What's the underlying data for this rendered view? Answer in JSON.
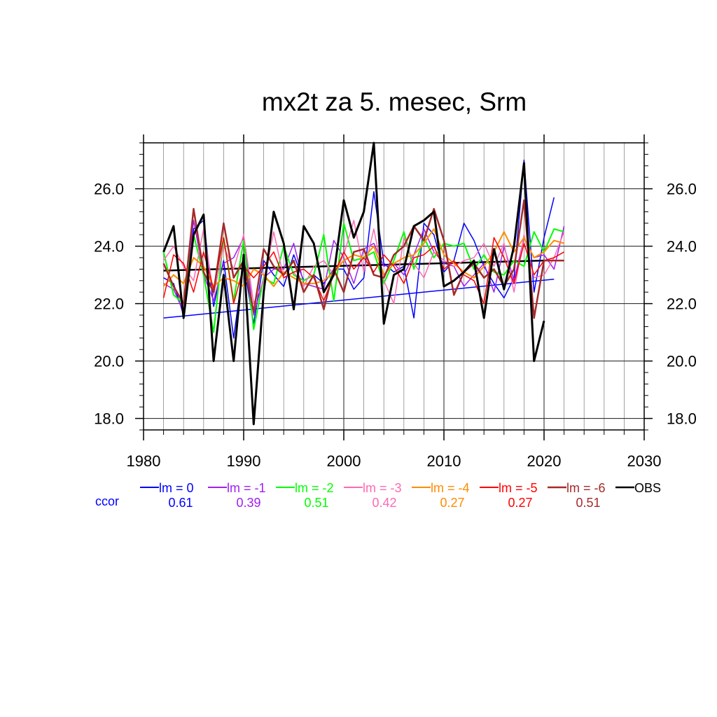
{
  "chart_data": {
    "type": "line",
    "title": "mx2t za 5. mesec, Srm",
    "xlim": [
      1980,
      2030
    ],
    "ylim": [
      17.6,
      27.6
    ],
    "x_ticks": [
      1980,
      1990,
      2000,
      2010,
      2020,
      2030
    ],
    "x_tick_labels": [
      "1980",
      "1990",
      "2000",
      "2010",
      "2020",
      "2030"
    ],
    "y_ticks": [
      18,
      20,
      22,
      24,
      26
    ],
    "y_tick_labels": [
      "18.0",
      "20.0",
      "22.0",
      "24.0",
      "26.0"
    ],
    "grid": true,
    "ccor_label": "ccor",
    "series": [
      {
        "name": "lm = 0",
        "color": "#0000ff",
        "width": 1.5,
        "ccor": "0.61",
        "x": [
          1982,
          1983,
          1984,
          1985,
          1986,
          1987,
          1988,
          1989,
          1990,
          1991,
          1992,
          1993,
          1994,
          1995,
          1996,
          1997,
          1998,
          1999,
          2000,
          2001,
          2002,
          2003,
          2004,
          2005,
          2006,
          2007,
          2008,
          2009,
          2010,
          2011,
          2012,
          2013,
          2014,
          2015,
          2016,
          2017,
          2018,
          2019,
          2020,
          2021
        ],
        "y": [
          22.9,
          22.7,
          21.6,
          24.6,
          24.9,
          21.9,
          23.5,
          20.8,
          23.4,
          21.3,
          23.5,
          23.0,
          22.6,
          23.7,
          22.8,
          23.0,
          22.7,
          23.2,
          23.2,
          22.5,
          22.9,
          25.9,
          23.4,
          23.1,
          23.3,
          21.5,
          24.8,
          24.4,
          23.1,
          23.5,
          24.8,
          24.2,
          23.3,
          22.7,
          22.2,
          22.9,
          27.0,
          22.4,
          24.3,
          25.7
        ],
        "trend": [
          21.5,
          22.85
        ]
      },
      {
        "name": "lm = -1",
        "color": "#a020f0",
        "width": 1.5,
        "ccor": "0.39",
        "x": [
          1982,
          1983,
          1984,
          1985,
          1986,
          1987,
          1988,
          1989,
          1990,
          1991,
          1992,
          1993,
          1994,
          1995,
          1996,
          1997,
          1998,
          1999,
          2000,
          2001,
          2002,
          2003,
          2004,
          2005,
          2006,
          2007,
          2008,
          2009,
          2010,
          2011,
          2012,
          2013,
          2014,
          2015,
          2016,
          2017,
          2018,
          2019,
          2020,
          2021,
          2022
        ],
        "y": [
          22.7,
          22.5,
          21.7,
          24.9,
          23.0,
          22.1,
          23.4,
          23.6,
          24.3,
          21.6,
          22.9,
          23.2,
          23.2,
          24.1,
          22.7,
          22.6,
          22.5,
          24.2,
          23.6,
          22.7,
          23.9,
          24.1,
          23.3,
          23.4,
          23.0,
          23.7,
          24.6,
          23.8,
          23.4,
          23.3,
          22.6,
          23.0,
          23.4,
          22.4,
          24.0,
          22.8,
          24.3,
          23.6,
          23.7,
          23.2,
          24.7
        ]
      },
      {
        "name": "lm = -2",
        "color": "#00ff00",
        "width": 2,
        "ccor": "0.51",
        "x": [
          1982,
          1983,
          1984,
          1985,
          1986,
          1987,
          1988,
          1989,
          1990,
          1991,
          1992,
          1993,
          1994,
          1995,
          1996,
          1997,
          1998,
          1999,
          2000,
          2001,
          2002,
          2003,
          2004,
          2005,
          2006,
          2007,
          2008,
          2009,
          2010,
          2011,
          2012,
          2013,
          2014,
          2015,
          2016,
          2017,
          2018,
          2019,
          2020,
          2021,
          2022
        ],
        "y": [
          23.8,
          22.3,
          22.0,
          24.4,
          23.0,
          21.0,
          24.3,
          22.1,
          24.2,
          21.1,
          22.9,
          22.7,
          24.0,
          23.0,
          22.8,
          23.0,
          24.4,
          22.1,
          24.8,
          23.5,
          23.6,
          23.8,
          22.7,
          23.5,
          24.5,
          23.2,
          24.3,
          23.6,
          24.1,
          24.0,
          24.1,
          23.2,
          23.7,
          23.1,
          23.0,
          23.5,
          23.3,
          24.5,
          23.8,
          24.6,
          24.5
        ]
      },
      {
        "name": "lm = -3",
        "color": "#ff69b4",
        "width": 1.5,
        "ccor": "0.42",
        "x": [
          1982,
          1983,
          1984,
          1985,
          1986,
          1987,
          1988,
          1989,
          1990,
          1991,
          1992,
          1993,
          1994,
          1995,
          1996,
          1997,
          1998,
          1999,
          2000,
          2001,
          2002,
          2003,
          2004,
          2005,
          2006,
          2007,
          2008,
          2009,
          2010,
          2011,
          2012,
          2013,
          2014,
          2015,
          2016,
          2017,
          2018,
          2019,
          2020,
          2021,
          2022
        ],
        "y": [
          23.5,
          24.0,
          23.3,
          22.8,
          24.6,
          22.3,
          24.0,
          23.2,
          24.4,
          22.0,
          22.8,
          24.5,
          22.9,
          23.1,
          22.6,
          23.3,
          23.5,
          23.0,
          23.7,
          24.9,
          23.1,
          24.6,
          22.8,
          22.0,
          24.3,
          23.4,
          22.9,
          23.8,
          23.5,
          23.3,
          23.5,
          23.6,
          24.1,
          23.3,
          24.1,
          22.4,
          24.4,
          22.9,
          23.0,
          23.6,
          24.5
        ]
      },
      {
        "name": "lm = -4",
        "color": "#ff8c00",
        "width": 2,
        "ccor": "0.27",
        "x": [
          1982,
          1983,
          1984,
          1985,
          1986,
          1987,
          1988,
          1989,
          1990,
          1991,
          1992,
          1993,
          1994,
          1995,
          1996,
          1997,
          1998,
          1999,
          2000,
          2001,
          2002,
          2003,
          2004,
          2005,
          2006,
          2007,
          2008,
          2009,
          2010,
          2011,
          2012,
          2013,
          2014,
          2015,
          2016,
          2017,
          2018,
          2019,
          2020,
          2021,
          2022
        ],
        "y": [
          22.6,
          23.0,
          22.7,
          23.6,
          23.3,
          22.6,
          22.9,
          22.8,
          22.6,
          23.2,
          23.0,
          22.6,
          23.1,
          22.9,
          22.7,
          22.7,
          22.8,
          23.1,
          23.5,
          23.7,
          23.6,
          24.0,
          23.0,
          23.4,
          23.6,
          23.7,
          24.1,
          24.6,
          23.7,
          23.4,
          23.1,
          22.9,
          23.3,
          23.8,
          24.5,
          23.8,
          24.3,
          23.6,
          23.8,
          24.2,
          24.1
        ]
      },
      {
        "name": "lm = -5",
        "color": "#ff0000",
        "width": 1.5,
        "ccor": "0.27",
        "x": [
          1982,
          1983,
          1984,
          1985,
          1986,
          1987,
          1988,
          1989,
          1990,
          1991,
          1992,
          1993,
          1994,
          1995,
          1996,
          1997,
          1998,
          1999,
          2000,
          2001,
          2002,
          2003,
          2004,
          2005,
          2006,
          2007,
          2008,
          2009,
          2010,
          2011,
          2012,
          2013,
          2014,
          2015,
          2016,
          2017,
          2018,
          2019,
          2020,
          2021,
          2022
        ],
        "y": [
          22.2,
          23.7,
          23.4,
          22.4,
          23.8,
          22.5,
          24.3,
          22.0,
          23.3,
          22.9,
          23.3,
          23.8,
          22.9,
          23.1,
          23.2,
          22.9,
          22.1,
          23.0,
          23.8,
          23.2,
          23.6,
          23.1,
          23.7,
          23.3,
          22.7,
          23.6,
          23.7,
          24.0,
          23.2,
          23.5,
          23.0,
          22.8,
          22.0,
          24.3,
          23.6,
          22.7,
          24.1,
          23.0,
          23.5,
          23.6,
          23.8
        ]
      },
      {
        "name": "lm = -6",
        "color": "#a52a2a",
        "width": 2.5,
        "ccor": "0.51",
        "x": [
          1982,
          1983,
          1984,
          1985,
          1986,
          1987,
          1988,
          1989,
          1990,
          1991,
          1992,
          1993,
          1994,
          1995,
          1996,
          1997,
          1998,
          1999,
          2000,
          2001,
          2002,
          2003,
          2004,
          2005,
          2006,
          2007,
          2008,
          2009,
          2010,
          2011,
          2012,
          2013,
          2014,
          2015,
          2016,
          2017,
          2018,
          2019,
          2020,
          2021,
          2022
        ],
        "y": [
          23.4,
          22.6,
          22.0,
          25.3,
          23.1,
          22.4,
          24.8,
          22.9,
          23.5,
          21.7,
          23.9,
          23.3,
          23.0,
          23.5,
          22.4,
          23.0,
          21.8,
          23.2,
          22.4,
          23.8,
          23.9,
          23.0,
          22.9,
          23.7,
          24.0,
          24.7,
          24.2,
          25.3,
          24.2,
          22.3,
          23.1,
          23.4,
          22.9,
          23.2,
          22.6,
          23.2,
          25.6,
          21.5,
          23.5,
          23.5,
          23.5
        ]
      },
      {
        "name": "OBS",
        "color": "#000000",
        "width": 3,
        "ccor": "",
        "x": [
          1982,
          1983,
          1984,
          1985,
          1986,
          1987,
          1988,
          1989,
          1990,
          1991,
          1992,
          1993,
          1994,
          1995,
          1996,
          1997,
          1998,
          1999,
          2000,
          2001,
          2002,
          2003,
          2004,
          2005,
          2006,
          2007,
          2008,
          2009,
          2010,
          2011,
          2012,
          2013,
          2014,
          2015,
          2016,
          2017,
          2018,
          2019,
          2020
        ],
        "y": [
          23.8,
          24.7,
          21.5,
          24.4,
          25.1,
          20.0,
          23.0,
          20.0,
          23.7,
          17.8,
          22.4,
          25.2,
          24.1,
          21.8,
          24.7,
          24.1,
          22.4,
          23.0,
          25.6,
          24.3,
          25.2,
          27.6,
          21.3,
          23.0,
          23.2,
          24.7,
          24.9,
          25.2,
          22.6,
          22.8,
          23.1,
          23.5,
          21.5,
          23.9,
          22.5,
          24.0,
          26.9,
          20.0,
          21.4
        ],
        "trend": [
          23.15,
          23.5
        ]
      }
    ]
  }
}
